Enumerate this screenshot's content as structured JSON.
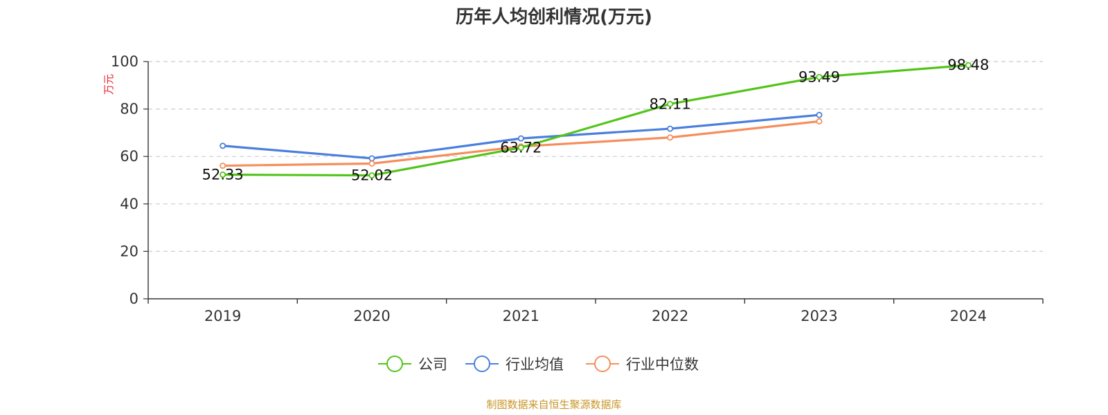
{
  "chart_data": {
    "type": "line",
    "title": "历年人均创利情况(万元)",
    "ylabel": "万元",
    "xlabel": "",
    "categories": [
      "2019",
      "2020",
      "2021",
      "2022",
      "2023",
      "2024"
    ],
    "ylim": [
      0,
      100
    ],
    "yticks": [
      0,
      20,
      40,
      60,
      80,
      100
    ],
    "grid": true,
    "legend_position": "bottom-center",
    "series": [
      {
        "name": "公司",
        "color": "#52c41a",
        "values": [
          52.33,
          52.02,
          63.72,
          82.11,
          93.49,
          98.48
        ],
        "data_labels": [
          "52.33",
          "52.02",
          "63.72",
          "82.11",
          "93.49",
          "98.48"
        ]
      },
      {
        "name": "行业均值",
        "color": "#4a7fdc",
        "values": [
          64.5,
          59.2,
          67.6,
          71.7,
          77.5,
          null
        ]
      },
      {
        "name": "行业中位数",
        "color": "#f58e5c",
        "values": [
          56.1,
          57.0,
          64.2,
          68.0,
          74.8,
          null
        ]
      }
    ]
  },
  "source_text": "制图数据来自恒生聚源数据库"
}
